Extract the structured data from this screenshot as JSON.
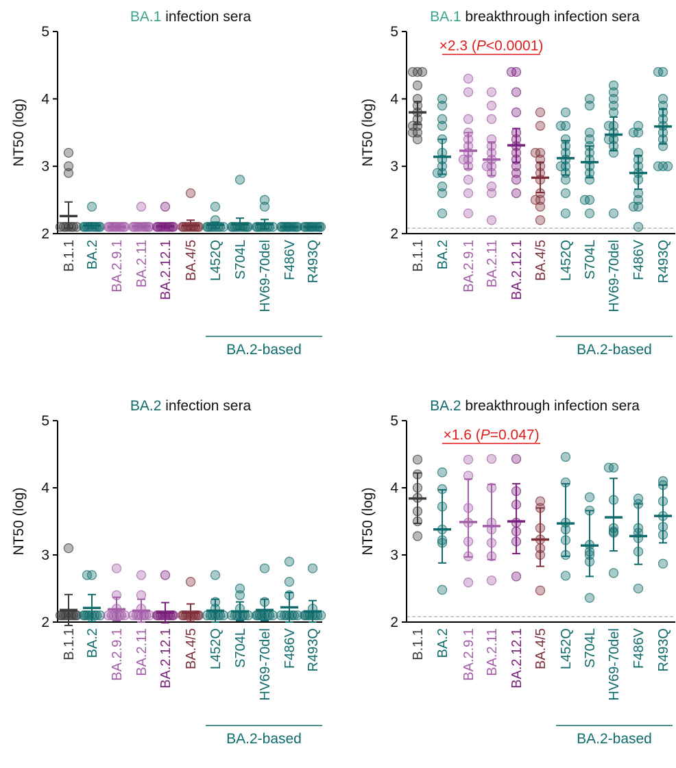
{
  "figure": {
    "y_axis_label": "NT50 (log)",
    "group_label": "BA.2-based",
    "y_ticks": [
      "2",
      "3",
      "4",
      "5"
    ]
  },
  "colors": {
    "B.1.1": "#3a3a3a",
    "BA.2": "#0f6b6b",
    "BA.2.9.1": "#a45ea8",
    "BA.2.11": "#a45ea8",
    "BA.2.12.1": "#7a1f7c",
    "BA.4/5": "#7d2e38",
    "L452Q": "#0f6b6b",
    "S704L": "#0f6b6b",
    "HV69-70del": "#0f6b6b",
    "F486V": "#0f6b6b",
    "R493Q": "#0f6b6b",
    "BA.1_title": "#3aa58a",
    "BA.2_title": "#0f6b6b",
    "annotation": "#e01c1c",
    "detection_limit": "#b5b5b5"
  },
  "chart_data": [
    {
      "type": "scatter",
      "title_variant": "BA.1",
      "title_rest": " infection sera",
      "ylabel": "NT50 (log)",
      "ylim": [
        2,
        5
      ],
      "detection_limit": 2.08,
      "categories": [
        "B.1.1",
        "BA.2",
        "BA.2.9.1",
        "BA.2.11",
        "BA.2.12.1",
        "BA.4/5",
        "L452Q",
        "S704L",
        "HV69-70del",
        "F486V",
        "R493Q"
      ],
      "series": [
        {
          "label": "B.1.1",
          "mean": 2.26,
          "sd_low": 2.08,
          "sd_high": 2.47,
          "points": [
            3.2,
            3.0,
            2.9,
            2.1,
            2.1,
            2.1,
            2.1,
            2.1,
            2.1,
            2.1
          ]
        },
        {
          "label": "BA.2",
          "mean": 2.12,
          "sd_low": 2.08,
          "sd_high": 2.16,
          "points": [
            2.4,
            2.1,
            2.1,
            2.1,
            2.1,
            2.1,
            2.1,
            2.1,
            2.1,
            2.1
          ]
        },
        {
          "label": "BA.2.9.1",
          "mean": 2.1,
          "sd_low": 2.09,
          "sd_high": 2.11,
          "points": [
            2.1,
            2.1,
            2.1,
            2.1,
            2.1,
            2.1,
            2.1,
            2.1,
            2.1,
            2.1
          ]
        },
        {
          "label": "BA.2.11",
          "mean": 2.11,
          "sd_low": 2.08,
          "sd_high": 2.15,
          "points": [
            2.4,
            2.1,
            2.1,
            2.1,
            2.1,
            2.1,
            2.1,
            2.1,
            2.1,
            2.1
          ]
        },
        {
          "label": "BA.2.12.1",
          "mean": 2.11,
          "sd_low": 2.08,
          "sd_high": 2.15,
          "points": [
            2.4,
            2.1,
            2.1,
            2.1,
            2.1,
            2.1,
            2.1,
            2.1,
            2.1,
            2.1
          ]
        },
        {
          "label": "BA.4/5",
          "mean": 2.12,
          "sd_low": 2.05,
          "sd_high": 2.2,
          "points": [
            2.6,
            2.1,
            2.1,
            2.1,
            2.1,
            2.1,
            2.1,
            2.1,
            2.1,
            2.1
          ]
        },
        {
          "label": "L452Q",
          "mean": 2.13,
          "sd_low": 2.08,
          "sd_high": 2.17,
          "points": [
            2.4,
            2.2,
            2.1,
            2.1,
            2.1,
            2.1,
            2.1,
            2.1,
            2.1,
            2.1
          ]
        },
        {
          "label": "S704L",
          "mean": 2.14,
          "sd_low": 2.06,
          "sd_high": 2.23,
          "points": [
            2.8,
            2.1,
            2.1,
            2.1,
            2.1,
            2.1,
            2.1,
            2.1,
            2.1,
            2.1
          ]
        },
        {
          "label": "HV69-70del",
          "mean": 2.14,
          "sd_low": 2.07,
          "sd_high": 2.21,
          "points": [
            2.5,
            2.4,
            2.1,
            2.1,
            2.1,
            2.1,
            2.1,
            2.1,
            2.1,
            2.1
          ]
        },
        {
          "label": "F486V",
          "mean": 2.1,
          "sd_low": 2.09,
          "sd_high": 2.11,
          "points": [
            2.1,
            2.1,
            2.1,
            2.1,
            2.1,
            2.1,
            2.1,
            2.1,
            2.1,
            2.1
          ]
        },
        {
          "label": "R493Q",
          "mean": 2.1,
          "sd_low": 2.09,
          "sd_high": 2.11,
          "points": [
            2.1,
            2.1,
            2.1,
            2.1,
            2.1,
            2.1,
            2.1,
            2.1,
            2.1,
            2.1
          ]
        }
      ]
    },
    {
      "type": "scatter",
      "title_variant": "BA.1",
      "title_rest": " breakthrough infection sera",
      "ylabel": "NT50 (log)",
      "ylim": [
        2,
        5
      ],
      "detection_limit": 2.08,
      "annotation": {
        "text_pre": "×2.3 (",
        "text_p": "P",
        "text_post": "<0.0001)",
        "from": "BA.2",
        "to": "BA.4/5",
        "y": 4.66
      },
      "categories": [
        "B.1.1",
        "BA.2",
        "BA.2.9.1",
        "BA.2.11",
        "BA.2.12.1",
        "BA.4/5",
        "L452Q",
        "S704L",
        "HV69-70del",
        "F486V",
        "R493Q"
      ],
      "series": [
        {
          "label": "B.1.1",
          "mean": 3.8,
          "sd_low": 3.62,
          "sd_high": 3.96,
          "points": [
            4.4,
            4.4,
            4.2,
            4.0,
            3.9,
            3.8,
            3.7,
            3.6,
            3.5,
            3.5,
            3.4,
            4.4,
            3.6
          ]
        },
        {
          "label": "BA.2",
          "mean": 3.14,
          "sd_low": 2.88,
          "sd_high": 3.4,
          "points": [
            4.0,
            3.9,
            3.7,
            3.6,
            3.4,
            3.2,
            3.0,
            2.9,
            2.9,
            2.7,
            2.6,
            2.3,
            3.1
          ]
        },
        {
          "label": "BA.2.9.1",
          "mean": 3.23,
          "sd_low": 2.96,
          "sd_high": 3.5,
          "points": [
            4.3,
            4.1,
            3.7,
            3.5,
            3.4,
            3.2,
            3.1,
            3.0,
            2.8,
            2.6,
            2.3,
            3.3,
            3.1
          ]
        },
        {
          "label": "BA.2.11",
          "mean": 3.1,
          "sd_low": 2.86,
          "sd_high": 3.36,
          "points": [
            4.1,
            3.9,
            3.7,
            3.4,
            3.3,
            3.1,
            3.0,
            2.9,
            2.7,
            2.6,
            2.2,
            3.2,
            3.0
          ]
        },
        {
          "label": "BA.2.12.1",
          "mean": 3.31,
          "sd_low": 3.06,
          "sd_high": 3.56,
          "points": [
            4.4,
            4.4,
            4.1,
            3.8,
            3.5,
            3.4,
            3.3,
            3.2,
            3.1,
            2.9,
            2.8,
            2.6,
            3.0
          ]
        },
        {
          "label": "BA.4/5",
          "mean": 2.83,
          "sd_low": 2.61,
          "sd_high": 3.06,
          "points": [
            3.8,
            3.6,
            3.2,
            3.1,
            3.0,
            2.9,
            2.8,
            2.6,
            2.5,
            2.5,
            2.4,
            2.2,
            3.2
          ]
        },
        {
          "label": "L452Q",
          "mean": 3.12,
          "sd_low": 2.87,
          "sd_high": 3.38,
          "points": [
            3.8,
            3.6,
            3.6,
            3.4,
            3.3,
            3.2,
            3.0,
            2.9,
            2.8,
            2.6,
            2.3,
            3.1,
            3.0
          ]
        },
        {
          "label": "S704L",
          "mean": 3.06,
          "sd_low": 2.83,
          "sd_high": 3.3,
          "points": [
            4.0,
            3.9,
            3.5,
            3.4,
            3.2,
            3.1,
            3.0,
            2.9,
            2.8,
            2.5,
            2.5,
            2.3,
            3.3
          ]
        },
        {
          "label": "HV69-70del",
          "mean": 3.47,
          "sd_low": 3.23,
          "sd_high": 3.73,
          "points": [
            4.2,
            4.1,
            4.0,
            3.9,
            3.6,
            3.5,
            3.4,
            3.4,
            3.3,
            3.2,
            2.3,
            3.8,
            3.6
          ]
        },
        {
          "label": "F486V",
          "mean": 2.9,
          "sd_low": 2.66,
          "sd_high": 3.16,
          "points": [
            3.6,
            3.5,
            3.5,
            3.2,
            3.1,
            3.0,
            2.9,
            2.8,
            2.6,
            2.5,
            2.4,
            2.4,
            2.1
          ]
        },
        {
          "label": "R493Q",
          "mean": 3.59,
          "sd_low": 3.33,
          "sd_high": 3.85,
          "points": [
            4.4,
            4.4,
            4.0,
            3.9,
            3.8,
            3.6,
            3.5,
            3.4,
            3.3,
            3.0,
            3.0,
            3.0,
            3.7
          ]
        }
      ]
    },
    {
      "type": "scatter",
      "title_variant": "BA.2",
      "title_rest": " infection sera",
      "ylabel": "NT50 (log)",
      "ylim": [
        2,
        5
      ],
      "detection_limit": 2.08,
      "categories": [
        "B.1.1",
        "BA.2",
        "BA.2.9.1",
        "BA.2.11",
        "BA.2.12.1",
        "BA.4/5",
        "L452Q",
        "S704L",
        "HV69-70del",
        "F486V",
        "R493Q"
      ],
      "series": [
        {
          "label": "B.1.1",
          "mean": 2.18,
          "sd_low": 1.95,
          "sd_high": 2.41,
          "points": [
            3.1,
            2.1,
            2.1,
            2.1,
            2.1,
            2.1,
            2.1,
            2.1,
            2.1,
            2.1
          ]
        },
        {
          "label": "BA.2",
          "mean": 2.21,
          "sd_low": 2.01,
          "sd_high": 2.41,
          "points": [
            2.7,
            2.7,
            2.1,
            2.1,
            2.1,
            2.1,
            2.1,
            2.1,
            2.1,
            2.1
          ]
        },
        {
          "label": "BA.2.9.1",
          "mean": 2.19,
          "sd_low": 2.02,
          "sd_high": 2.37,
          "points": [
            2.8,
            2.4,
            2.2,
            2.1,
            2.1,
            2.1,
            2.1,
            2.1,
            2.1,
            2.1
          ]
        },
        {
          "label": "BA.2.11",
          "mean": 2.17,
          "sd_low": 2.0,
          "sd_high": 2.34,
          "points": [
            2.7,
            2.4,
            2.2,
            2.1,
            2.1,
            2.1,
            2.1,
            2.1,
            2.1,
            2.1
          ]
        },
        {
          "label": "BA.2.12.1",
          "mean": 2.14,
          "sd_low": 1.99,
          "sd_high": 2.29,
          "points": [
            2.7,
            2.1,
            2.1,
            2.1,
            2.1,
            2.1,
            2.1,
            2.1,
            2.1,
            2.1
          ]
        },
        {
          "label": "BA.4/5",
          "mean": 2.14,
          "sd_low": 2.01,
          "sd_high": 2.27,
          "points": [
            2.6,
            2.1,
            2.1,
            2.1,
            2.1,
            2.1,
            2.1,
            2.1,
            2.1,
            2.1
          ]
        },
        {
          "label": "L452Q",
          "mean": 2.17,
          "sd_low": 2.0,
          "sd_high": 2.34,
          "points": [
            2.7,
            2.3,
            2.2,
            2.1,
            2.1,
            2.1,
            2.1,
            2.1,
            2.1,
            2.1
          ]
        },
        {
          "label": "S704L",
          "mean": 2.16,
          "sd_low": 2.02,
          "sd_high": 2.3,
          "points": [
            2.5,
            2.4,
            2.2,
            2.1,
            2.1,
            2.1,
            2.1,
            2.1,
            2.1,
            2.1
          ]
        },
        {
          "label": "HV69-70del",
          "mean": 2.18,
          "sd_low": 2.02,
          "sd_high": 2.34,
          "points": [
            2.8,
            2.3,
            2.1,
            2.1,
            2.1,
            2.1,
            2.1,
            2.1,
            2.1,
            2.1
          ]
        },
        {
          "label": "F486V",
          "mean": 2.22,
          "sd_low": 2.0,
          "sd_high": 2.44,
          "points": [
            2.9,
            2.6,
            2.4,
            2.1,
            2.1,
            2.1,
            2.1,
            2.1,
            2.1,
            2.1
          ]
        },
        {
          "label": "R493Q",
          "mean": 2.16,
          "sd_low": 2.0,
          "sd_high": 2.32,
          "points": [
            2.8,
            2.2,
            2.1,
            2.1,
            2.1,
            2.1,
            2.1,
            2.1,
            2.1,
            2.1
          ]
        }
      ]
    },
    {
      "type": "scatter",
      "title_variant": "BA.2",
      "title_rest": " breakthrough infection sera",
      "ylabel": "NT50 (log)",
      "ylim": [
        2,
        5
      ],
      "detection_limit": 2.08,
      "annotation": {
        "text_pre": "×1.6 (",
        "text_p": "P",
        "text_post": "=0.047)",
        "from": "BA.2",
        "to": "BA.4/5",
        "y": 4.66
      },
      "categories": [
        "B.1.1",
        "BA.2",
        "BA.2.9.1",
        "BA.2.11",
        "BA.2.12.1",
        "BA.4/5",
        "L452Q",
        "S704L",
        "HV69-70del",
        "F486V",
        "R493Q"
      ],
      "series": [
        {
          "label": "B.1.1",
          "mean": 3.84,
          "sd_low": 3.47,
          "sd_high": 4.22,
          "points": [
            4.42,
            4.2,
            4.0,
            3.85,
            3.65,
            3.5,
            3.28
          ]
        },
        {
          "label": "BA.2",
          "mean": 3.38,
          "sd_low": 2.88,
          "sd_high": 3.97,
          "points": [
            4.23,
            3.98,
            3.72,
            3.38,
            3.22,
            3.18,
            2.48
          ]
        },
        {
          "label": "BA.2.9.1",
          "mean": 3.49,
          "sd_low": 2.97,
          "sd_high": 4.13,
          "points": [
            4.42,
            4.18,
            3.7,
            3.48,
            3.2,
            2.98,
            2.59
          ]
        },
        {
          "label": "BA.2.11",
          "mean": 3.43,
          "sd_low": 2.93,
          "sd_high": 4.05,
          "points": [
            4.43,
            4.0,
            3.48,
            3.38,
            3.18,
            2.98,
            2.62
          ]
        },
        {
          "label": "BA.2.12.1",
          "mean": 3.5,
          "sd_low": 3.02,
          "sd_high": 4.06,
          "points": [
            4.43,
            3.95,
            3.75,
            3.48,
            3.35,
            3.2,
            2.68
          ]
        },
        {
          "label": "BA.4/5",
          "mean": 3.23,
          "sd_low": 2.83,
          "sd_high": 3.7,
          "points": [
            3.8,
            3.7,
            3.4,
            3.23,
            3.1,
            3.0,
            2.47
          ]
        },
        {
          "label": "L452Q",
          "mean": 3.47,
          "sd_low": 2.98,
          "sd_high": 4.06,
          "points": [
            4.46,
            4.08,
            3.48,
            3.38,
            3.22,
            3.0,
            2.69
          ]
        },
        {
          "label": "S704L",
          "mean": 3.14,
          "sd_low": 2.68,
          "sd_high": 3.66,
          "points": [
            3.86,
            3.66,
            3.15,
            3.05,
            3.0,
            2.9,
            2.36
          ]
        },
        {
          "label": "HV69-70del",
          "mean": 3.56,
          "sd_low": 3.06,
          "sd_high": 4.14,
          "points": [
            4.3,
            4.3,
            3.82,
            3.4,
            3.35,
            3.33,
            2.73
          ]
        },
        {
          "label": "F486V",
          "mean": 3.28,
          "sd_low": 2.86,
          "sd_high": 3.76,
          "points": [
            3.84,
            3.76,
            3.4,
            3.33,
            3.25,
            3.05,
            2.5
          ]
        },
        {
          "label": "R493Q",
          "mean": 3.58,
          "sd_low": 3.18,
          "sd_high": 4.04,
          "points": [
            4.1,
            4.04,
            3.8,
            3.58,
            3.42,
            3.3,
            2.87
          ]
        }
      ]
    }
  ]
}
